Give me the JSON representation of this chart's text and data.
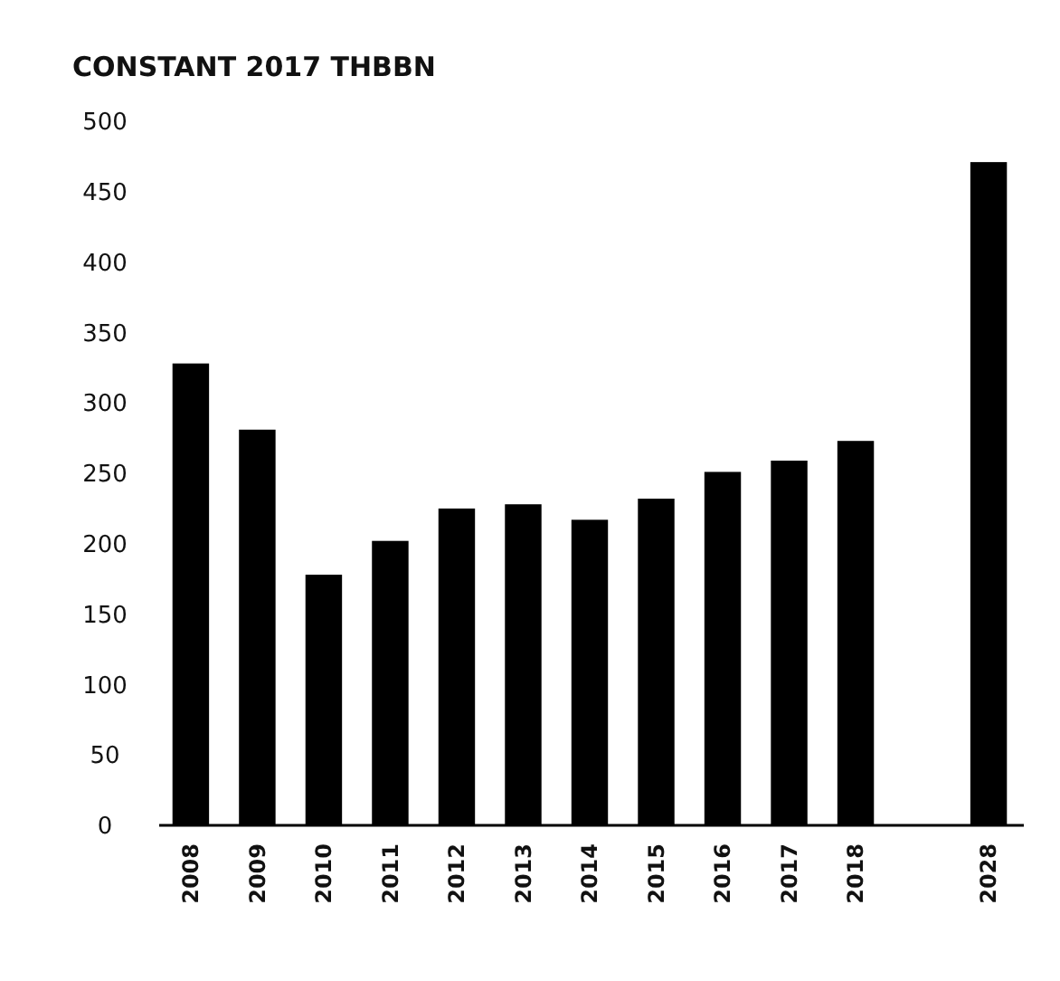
{
  "chart_data": {
    "type": "bar",
    "title": "CONSTANT 2017 THBBN",
    "categories": [
      "2008",
      "2009",
      "2010",
      "2011",
      "2012",
      "2013",
      "2014",
      "2015",
      "2016",
      "2017",
      "2018",
      null,
      "2028"
    ],
    "values": [
      328,
      281,
      178,
      202,
      225,
      228,
      217,
      232,
      251,
      259,
      273,
      null,
      471
    ],
    "color": "#000000",
    "ylim": [
      0,
      500
    ],
    "yticks": [
      0,
      50,
      100,
      150,
      200,
      250,
      300,
      350,
      400,
      450,
      500
    ],
    "grid": false
  }
}
